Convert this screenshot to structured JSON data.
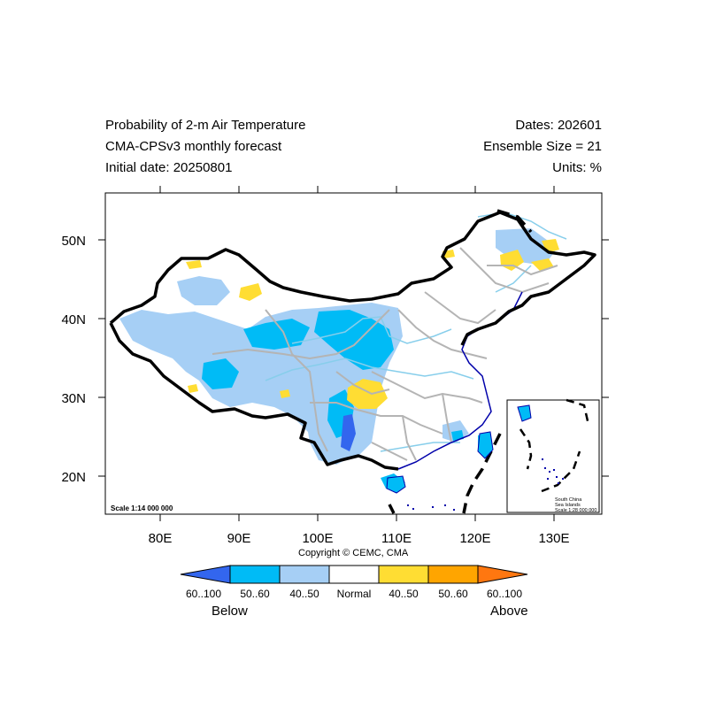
{
  "header": {
    "title_line1": "Probability of 2-m Air Temperature",
    "title_line2": "CMA-CPSv3 monthly forecast",
    "title_line3": "Initial date: 20250801",
    "dates": "Dates: 202601",
    "ensemble": "Ensemble Size = 21",
    "units": "Units: %"
  },
  "map": {
    "lat_labels": [
      "50N",
      "40N",
      "30N",
      "20N"
    ],
    "lon_labels": [
      "80E",
      "90E",
      "100E",
      "110E",
      "120E",
      "130E"
    ],
    "scale_main": "Scale 1:14 000 000",
    "inset": {
      "line1": "South China",
      "line2": "Sea Islands",
      "line3": "Scale 1:28 000 000"
    },
    "copyright": "Copyright © CEMC, CMA"
  },
  "legend": {
    "labels": [
      "60..100",
      "50..60",
      "40..50",
      "Normal",
      "40..50",
      "50..60",
      "60..100"
    ],
    "colors": [
      "#3366ee",
      "#00bbf6",
      "#a6cff5",
      "#ffffff",
      "#ffdd33",
      "#ffa500",
      "#ff7710"
    ],
    "below_label": "Below",
    "above_label": "Above"
  }
}
